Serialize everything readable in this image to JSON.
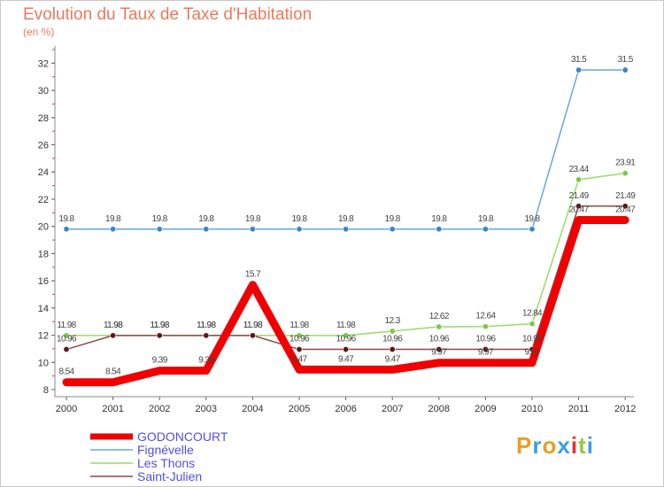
{
  "header": {
    "title": "Evolution du Taux de Taxe d'Habitation",
    "subtitle": "(en %)"
  },
  "logo": {
    "letters": [
      "P",
      "r",
      "o",
      "x",
      "i",
      "t",
      "i"
    ],
    "colors": [
      "#e8a020",
      "#3aa0e0",
      "#e8a020",
      "#3aa0e0",
      "#e83030",
      "#9ac83a",
      "#3aa0e0"
    ]
  },
  "chart_data": {
    "type": "line",
    "title": "Evolution du Taux de Taxe d'Habitation",
    "subtitle": "(en %)",
    "x": [
      "2000",
      "2001",
      "2002",
      "2003",
      "2004",
      "2005",
      "2006",
      "2007",
      "2008",
      "2009",
      "2010",
      "2011",
      "2012"
    ],
    "ylim": [
      8,
      33
    ],
    "yticks": [
      8,
      10,
      12,
      14,
      16,
      18,
      20,
      22,
      24,
      26,
      28,
      30,
      32
    ],
    "grid": false,
    "legend": "bottom-left",
    "series": [
      {
        "name": "Fignévelle",
        "color": "#6aa6d8",
        "marker": "#3a86c8",
        "width": 1.5,
        "values": [
          19.8,
          19.8,
          19.8,
          19.8,
          19.8,
          19.8,
          19.8,
          19.8,
          19.8,
          19.8,
          19.8,
          31.5,
          31.5
        ],
        "labels": [
          "19.8",
          "19.8",
          "19.8",
          "19.8",
          "19.8",
          "19.8",
          "19.8",
          "19.8",
          "19.8",
          "19.8",
          "19.8",
          "31.5",
          "31.5"
        ]
      },
      {
        "name": "Les Thons",
        "color": "#9ad96a",
        "marker": "#7cc84a",
        "width": 1.5,
        "values": [
          11.98,
          11.98,
          11.98,
          11.98,
          11.98,
          11.98,
          11.98,
          12.3,
          12.62,
          12.64,
          12.84,
          23.44,
          23.91
        ],
        "labels": [
          "11.98",
          "11.98",
          "11.98",
          "11.98",
          "11.98",
          "11.98",
          "11.98",
          "12.3",
          "12.62",
          "12.64",
          "12.84",
          "23.44",
          "23.91"
        ]
      },
      {
        "name": "Saint-Julien",
        "color": "#8a4a4a",
        "marker": "#5a1a1a",
        "width": 1.5,
        "values": [
          10.96,
          11.98,
          11.98,
          11.98,
          11.98,
          10.96,
          10.96,
          10.96,
          10.96,
          10.96,
          10.96,
          21.49,
          21.49
        ],
        "labels": [
          "10.96",
          "11.98",
          "11.98",
          "11.98",
          "11.98",
          "10.96",
          "10.96",
          "10.96",
          "10.96",
          "10.96",
          "10.96",
          "21.49",
          "21.49"
        ]
      },
      {
        "name": "GODONCOURT",
        "color": "#f00000",
        "marker": null,
        "width": 9,
        "values": [
          8.54,
          8.54,
          9.39,
          9.39,
          15.7,
          9.47,
          9.47,
          9.47,
          9.97,
          9.97,
          9.97,
          20.47,
          20.47
        ],
        "labels": [
          "8.54",
          "8.54",
          "9.39",
          "9.39",
          "15.7",
          "9.47",
          "9.47",
          "9.47",
          "9.97",
          "9.97",
          "9.97",
          "20.47",
          "20.47"
        ]
      }
    ]
  }
}
